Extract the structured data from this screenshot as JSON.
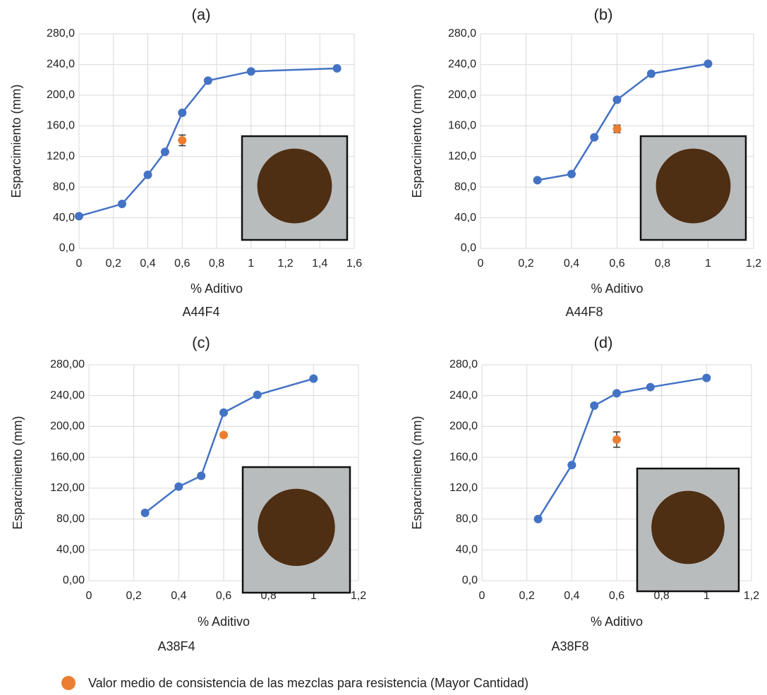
{
  "chart_data": [
    {
      "type": "line",
      "title": "(a)",
      "x_label": "% Aditivo",
      "y_label": "Esparcimiento (mm)",
      "caption": "A44F4",
      "grid": true,
      "xlim": [
        0,
        1.6
      ],
      "xticks": [
        0,
        {
          "value": 0.2,
          "label": "0,2"
        },
        {
          "value": 0.4,
          "label": "0,4"
        },
        {
          "value": 0.6,
          "label": "0,6"
        },
        {
          "value": 0.8,
          "label": "0,8"
        },
        1,
        {
          "value": 1.2,
          "label": "1,2"
        },
        {
          "value": 1.4,
          "label": "1,4"
        },
        {
          "value": 1.6,
          "label": "1,6"
        }
      ],
      "ylim": [
        0,
        280
      ],
      "yticks": [
        {
          "value": 0,
          "label": "0,0"
        },
        {
          "value": 40,
          "label": "40,0"
        },
        {
          "value": 80,
          "label": "80,0"
        },
        {
          "value": 120,
          "label": "120,0"
        },
        {
          "value": 160,
          "label": "160,0"
        },
        {
          "value": 200,
          "label": "200,0"
        },
        {
          "value": 240,
          "label": "240,0"
        },
        {
          "value": 280,
          "label": "280,0"
        }
      ],
      "series": [
        {
          "color": "#4472c4",
          "x": [
            0,
            0.25,
            0.4,
            0.5,
            0.6,
            0.75,
            1,
            1.5
          ],
          "values": [
            42,
            58,
            96,
            126,
            177,
            219,
            231,
            235
          ]
        },
        {
          "color": "#ed7d31",
          "x": [
            0.6
          ],
          "values": [
            141
          ],
          "error": [
            7
          ]
        }
      ]
    },
    {
      "type": "line",
      "title": "(b)",
      "x_label": "% Aditivo",
      "y_label": "Esparcimiento (mm)",
      "caption": "A44F8",
      "grid": true,
      "xlim": [
        0,
        1.2
      ],
      "xticks": [
        0,
        {
          "value": 0.2,
          "label": "0,2"
        },
        {
          "value": 0.4,
          "label": "0,4"
        },
        {
          "value": 0.6,
          "label": "0,6"
        },
        {
          "value": 0.8,
          "label": "0,8"
        },
        1,
        {
          "value": 1.2,
          "label": "1,2"
        }
      ],
      "ylim": [
        0,
        280
      ],
      "yticks": [
        {
          "value": 0,
          "label": "0,0"
        },
        {
          "value": 40,
          "label": "40,0"
        },
        {
          "value": 80,
          "label": "80,0"
        },
        {
          "value": 120,
          "label": "120,0"
        },
        {
          "value": 160,
          "label": "160,0"
        },
        {
          "value": 200,
          "label": "200,0"
        },
        {
          "value": 240,
          "label": "240,0"
        },
        {
          "value": 280,
          "label": "280,0"
        }
      ],
      "series": [
        {
          "color": "#4472c4",
          "x": [
            0.25,
            0.4,
            0.5,
            0.6,
            0.75,
            1
          ],
          "values": [
            89,
            97,
            145,
            194,
            228,
            241
          ]
        },
        {
          "color": "#ed7d31",
          "x": [
            0.6
          ],
          "values": [
            156
          ],
          "error": [
            5
          ]
        }
      ]
    },
    {
      "type": "line",
      "title": "(c)",
      "x_label": "% Aditivo",
      "y_label": "Esparcimiento (mm)",
      "caption": "A38F4",
      "grid": true,
      "xlim": [
        0,
        1.2
      ],
      "xticks": [
        0,
        {
          "value": 0.2,
          "label": "0,2"
        },
        {
          "value": 0.4,
          "label": "0,4"
        },
        {
          "value": 0.6,
          "label": "0,6"
        },
        {
          "value": 0.8,
          "label": "0,8"
        },
        1,
        {
          "value": 1.2,
          "label": "1,2"
        }
      ],
      "ylim": [
        0,
        280
      ],
      "yticks": [
        {
          "value": 0,
          "label": "0,00"
        },
        {
          "value": 40,
          "label": "40,00"
        },
        {
          "value": 80,
          "label": "80,00"
        },
        {
          "value": 120,
          "label": "120,00"
        },
        {
          "value": 160,
          "label": "160,00"
        },
        {
          "value": 200,
          "label": "200,00"
        },
        {
          "value": 240,
          "label": "240,00"
        },
        {
          "value": 280,
          "label": "280,00"
        }
      ],
      "series": [
        {
          "color": "#4472c4",
          "x": [
            0.25,
            0.4,
            0.5,
            0.6,
            0.75,
            1
          ],
          "values": [
            88,
            122,
            136,
            218,
            241,
            262
          ]
        },
        {
          "color": "#ed7d31",
          "x": [
            0.6
          ],
          "values": [
            189
          ]
        }
      ]
    },
    {
      "type": "line",
      "title": "(d)",
      "x_label": "% Aditivo",
      "y_label": "Esparcimiento (mm)",
      "caption": "A38F8",
      "grid": true,
      "xlim": [
        0,
        1.2
      ],
      "xticks": [
        0,
        {
          "value": 0.2,
          "label": "0,2"
        },
        {
          "value": 0.4,
          "label": "0,4"
        },
        {
          "value": 0.6,
          "label": "0,6"
        },
        {
          "value": 0.8,
          "label": "0,8"
        },
        1,
        {
          "value": 1.2,
          "label": "1,2"
        }
      ],
      "ylim": [
        0,
        280
      ],
      "yticks": [
        {
          "value": 0,
          "label": "0,0"
        },
        {
          "value": 40,
          "label": "40,0"
        },
        {
          "value": 80,
          "label": "80,0"
        },
        {
          "value": 120,
          "label": "120,0"
        },
        {
          "value": 160,
          "label": "160,0"
        },
        {
          "value": 200,
          "label": "200,0"
        },
        {
          "value": 240,
          "label": "240,0"
        },
        {
          "value": 280,
          "label": "280,0"
        }
      ],
      "series": [
        {
          "color": "#4472c4",
          "x": [
            0.25,
            0.4,
            0.5,
            0.6,
            0.75,
            1
          ],
          "values": [
            80,
            150,
            227,
            243,
            251,
            263
          ]
        },
        {
          "color": "#ed7d31",
          "x": [
            0.6
          ],
          "values": [
            183
          ],
          "error": [
            10
          ]
        }
      ]
    }
  ],
  "legend": {
    "label": "Valor medio de consistencia de las mezclas para resistencia (Mayor Cantidad)",
    "color": "#ed7d31"
  }
}
